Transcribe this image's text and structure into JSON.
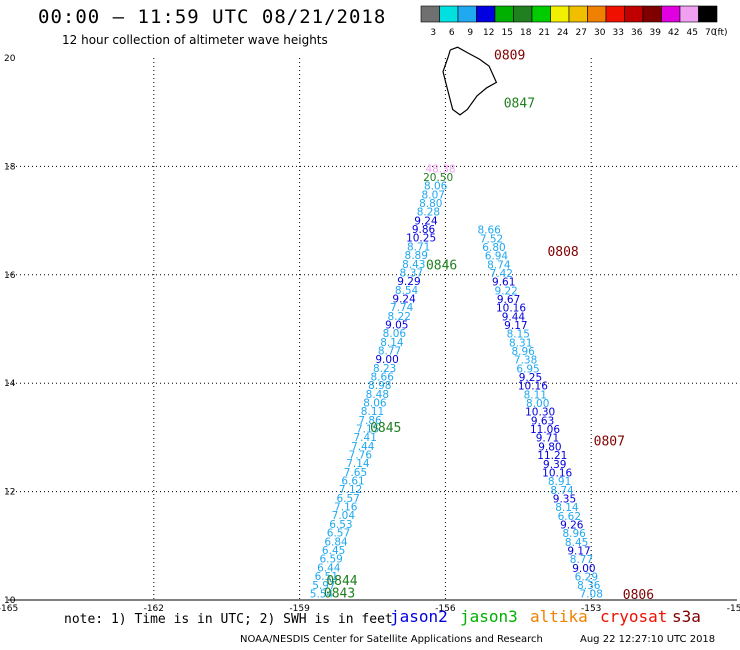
{
  "header": {
    "title": "00:00 – 11:59 UTC 08/21/2018",
    "subtitle": "12 hour collection of altimeter wave heights"
  },
  "colorbar": {
    "colors": [
      "#707070",
      "#00e0e0",
      "#20a8f0",
      "#0000e0",
      "#00b000",
      "#208020",
      "#00cc00",
      "#f0f000",
      "#f0c000",
      "#f08000",
      "#f01000",
      "#c00000",
      "#800000",
      "#e000e0",
      "#f0a0f0",
      "#000000"
    ],
    "labels": [
      "3",
      "6",
      "9",
      "12",
      "15",
      "18",
      "21",
      "24",
      "27",
      "30",
      "33",
      "36",
      "39",
      "42",
      "45",
      "70"
    ],
    "unit": "(ft)"
  },
  "chart_data": {
    "type": "scatter",
    "xlim": [
      -165,
      -150
    ],
    "ylim": [
      10,
      20
    ],
    "x_ticks": [
      "-165",
      "-162",
      "-159",
      "-156",
      "-153",
      "-150"
    ],
    "y_ticks": [
      "10",
      "12",
      "14",
      "16",
      "18",
      "20"
    ],
    "grid": "dotted",
    "tracks": [
      {
        "name": "jason3-ascending",
        "points": [
          {
            "lon": -158.55,
            "lat": 10.05,
            "v": "5.54",
            "c": "#20a8f0"
          },
          {
            "lon": -158.5,
            "lat": 10.2,
            "v": "5.97",
            "c": "#20a8f0"
          },
          {
            "lon": -158.45,
            "lat": 10.37,
            "v": "6.51",
            "c": "#20a8f0"
          },
          {
            "lon": -158.4,
            "lat": 10.53,
            "v": "6.44",
            "c": "#20a8f0"
          },
          {
            "lon": -158.35,
            "lat": 10.69,
            "v": "6.59",
            "c": "#20a8f0"
          },
          {
            "lon": -158.3,
            "lat": 10.85,
            "v": "6.45",
            "c": "#20a8f0"
          },
          {
            "lon": -158.25,
            "lat": 11.01,
            "v": "6.84",
            "c": "#20a8f0"
          },
          {
            "lon": -158.2,
            "lat": 11.17,
            "v": "6.57",
            "c": "#20a8f0"
          },
          {
            "lon": -158.15,
            "lat": 11.33,
            "v": "6.53",
            "c": "#20a8f0"
          },
          {
            "lon": -158.1,
            "lat": 11.49,
            "v": "7.04",
            "c": "#20a8f0"
          },
          {
            "lon": -158.05,
            "lat": 11.65,
            "v": "7.16",
            "c": "#20a8f0"
          },
          {
            "lon": -158.0,
            "lat": 11.81,
            "v": "6.57",
            "c": "#20a8f0"
          },
          {
            "lon": -157.95,
            "lat": 11.97,
            "v": "7.12",
            "c": "#20a8f0"
          },
          {
            "lon": -157.9,
            "lat": 12.13,
            "v": "6.61",
            "c": "#20a8f0"
          },
          {
            "lon": -157.85,
            "lat": 12.29,
            "v": "7.65",
            "c": "#20a8f0"
          },
          {
            "lon": -157.8,
            "lat": 12.45,
            "v": "7.14",
            "c": "#20a8f0"
          },
          {
            "lon": -157.75,
            "lat": 12.61,
            "v": "7.76",
            "c": "#20a8f0"
          },
          {
            "lon": -157.7,
            "lat": 12.77,
            "v": "7.44",
            "c": "#20a8f0"
          },
          {
            "lon": -157.65,
            "lat": 12.93,
            "v": "7.41",
            "c": "#20a8f0"
          },
          {
            "lon": -157.6,
            "lat": 13.09,
            "v": "7.15",
            "c": "#20a8f0"
          },
          {
            "lon": -157.55,
            "lat": 13.25,
            "v": "7.86",
            "c": "#20a8f0"
          },
          {
            "lon": -157.5,
            "lat": 13.41,
            "v": "8.11",
            "c": "#20a8f0"
          },
          {
            "lon": -157.45,
            "lat": 13.57,
            "v": "8.06",
            "c": "#20a8f0"
          },
          {
            "lon": -157.4,
            "lat": 13.73,
            "v": "8.48",
            "c": "#20a8f0"
          },
          {
            "lon": -157.35,
            "lat": 13.89,
            "v": "8.98",
            "c": "#20a8f0"
          },
          {
            "lon": -157.3,
            "lat": 14.05,
            "v": "8.66",
            "c": "#20a8f0"
          },
          {
            "lon": -157.25,
            "lat": 14.21,
            "v": "8.23",
            "c": "#20a8f0"
          },
          {
            "lon": -157.2,
            "lat": 14.37,
            "v": "9.00",
            "c": "#0000e0"
          },
          {
            "lon": -157.15,
            "lat": 14.53,
            "v": "8.77",
            "c": "#20a8f0"
          },
          {
            "lon": -157.1,
            "lat": 14.69,
            "v": "8.14",
            "c": "#20a8f0"
          },
          {
            "lon": -157.05,
            "lat": 14.85,
            "v": "8.06",
            "c": "#20a8f0"
          },
          {
            "lon": -157.0,
            "lat": 15.01,
            "v": "9.05",
            "c": "#0000e0"
          },
          {
            "lon": -156.95,
            "lat": 15.17,
            "v": "8.22",
            "c": "#20a8f0"
          },
          {
            "lon": -156.9,
            "lat": 15.33,
            "v": "7.74",
            "c": "#20a8f0"
          },
          {
            "lon": -156.85,
            "lat": 15.49,
            "v": "9.24",
            "c": "#0000e0"
          },
          {
            "lon": -156.8,
            "lat": 15.65,
            "v": "8.54",
            "c": "#20a8f0"
          },
          {
            "lon": -156.75,
            "lat": 15.81,
            "v": "9.29",
            "c": "#0000e0"
          },
          {
            "lon": -156.7,
            "lat": 15.97,
            "v": "8.37",
            "c": "#20a8f0"
          },
          {
            "lon": -156.65,
            "lat": 16.13,
            "v": "8.43",
            "c": "#20a8f0"
          },
          {
            "lon": -156.6,
            "lat": 16.29,
            "v": "8.89",
            "c": "#20a8f0"
          },
          {
            "lon": -156.55,
            "lat": 16.45,
            "v": "8.71",
            "c": "#20a8f0"
          },
          {
            "lon": -156.5,
            "lat": 16.61,
            "v": "10.25",
            "c": "#0000e0"
          },
          {
            "lon": -156.45,
            "lat": 16.77,
            "v": "9.86",
            "c": "#0000e0"
          },
          {
            "lon": -156.4,
            "lat": 16.93,
            "v": "9.24",
            "c": "#0000e0"
          },
          {
            "lon": -156.35,
            "lat": 17.09,
            "v": "8.28",
            "c": "#20a8f0"
          },
          {
            "lon": -156.3,
            "lat": 17.25,
            "v": "8.80",
            "c": "#20a8f0"
          },
          {
            "lon": -156.25,
            "lat": 17.41,
            "v": "8.07",
            "c": "#20a8f0"
          },
          {
            "lon": -156.2,
            "lat": 17.57,
            "v": "8.06",
            "c": "#20a8f0"
          },
          {
            "lon": -156.15,
            "lat": 17.73,
            "v": "20.50",
            "c": "#208020"
          },
          {
            "lon": -156.1,
            "lat": 17.89,
            "v": "48.38",
            "c": "#f0a0f0"
          }
        ]
      },
      {
        "name": "jason3-descending",
        "points": [
          {
            "lon": -153.0,
            "lat": 10.05,
            "v": "7.08",
            "c": "#20a8f0"
          },
          {
            "lon": -153.05,
            "lat": 10.2,
            "v": "8.36",
            "c": "#20a8f0"
          },
          {
            "lon": -153.1,
            "lat": 10.36,
            "v": "6.29",
            "c": "#20a8f0"
          },
          {
            "lon": -153.15,
            "lat": 10.52,
            "v": "9.00",
            "c": "#0000e0"
          },
          {
            "lon": -153.2,
            "lat": 10.68,
            "v": "8.77",
            "c": "#20a8f0"
          },
          {
            "lon": -153.25,
            "lat": 10.84,
            "v": "9.17",
            "c": "#0000e0"
          },
          {
            "lon": -153.3,
            "lat": 11.0,
            "v": "8.45",
            "c": "#20a8f0"
          },
          {
            "lon": -153.35,
            "lat": 11.16,
            "v": "8.96",
            "c": "#20a8f0"
          },
          {
            "lon": -153.4,
            "lat": 11.32,
            "v": "9.26",
            "c": "#0000e0"
          },
          {
            "lon": -153.45,
            "lat": 11.48,
            "v": "6.62",
            "c": "#20a8f0"
          },
          {
            "lon": -153.5,
            "lat": 11.64,
            "v": "8.14",
            "c": "#20a8f0"
          },
          {
            "lon": -153.55,
            "lat": 11.8,
            "v": "9.35",
            "c": "#0000e0"
          },
          {
            "lon": -153.6,
            "lat": 11.96,
            "v": "8.74",
            "c": "#20a8f0"
          },
          {
            "lon": -153.65,
            "lat": 12.12,
            "v": "8.91",
            "c": "#20a8f0"
          },
          {
            "lon": -153.7,
            "lat": 12.28,
            "v": "10.16",
            "c": "#0000e0"
          },
          {
            "lon": -153.75,
            "lat": 12.44,
            "v": "9.39",
            "c": "#0000e0"
          },
          {
            "lon": -153.8,
            "lat": 12.6,
            "v": "11.21",
            "c": "#0000e0"
          },
          {
            "lon": -153.85,
            "lat": 12.76,
            "v": "9.80",
            "c": "#0000e0"
          },
          {
            "lon": -153.9,
            "lat": 12.92,
            "v": "9.71",
            "c": "#0000e0"
          },
          {
            "lon": -153.95,
            "lat": 13.08,
            "v": "11.06",
            "c": "#0000e0"
          },
          {
            "lon": -154.0,
            "lat": 13.24,
            "v": "9.63",
            "c": "#0000e0"
          },
          {
            "lon": -154.05,
            "lat": 13.4,
            "v": "10.30",
            "c": "#0000e0"
          },
          {
            "lon": -154.1,
            "lat": 13.56,
            "v": "8.00",
            "c": "#20a8f0"
          },
          {
            "lon": -154.15,
            "lat": 13.72,
            "v": "8.11",
            "c": "#20a8f0"
          },
          {
            "lon": -154.2,
            "lat": 13.88,
            "v": "10.16",
            "c": "#0000e0"
          },
          {
            "lon": -154.25,
            "lat": 14.04,
            "v": "9.25",
            "c": "#0000e0"
          },
          {
            "lon": -154.3,
            "lat": 14.2,
            "v": "6.95",
            "c": "#20a8f0"
          },
          {
            "lon": -154.35,
            "lat": 14.36,
            "v": "7.38",
            "c": "#20a8f0"
          },
          {
            "lon": -154.4,
            "lat": 14.52,
            "v": "8.96",
            "c": "#20a8f0"
          },
          {
            "lon": -154.45,
            "lat": 14.68,
            "v": "8.31",
            "c": "#20a8f0"
          },
          {
            "lon": -154.5,
            "lat": 14.84,
            "v": "8.15",
            "c": "#20a8f0"
          },
          {
            "lon": -154.55,
            "lat": 15.0,
            "v": "9.17",
            "c": "#0000e0"
          },
          {
            "lon": -154.6,
            "lat": 15.16,
            "v": "9.44",
            "c": "#0000e0"
          },
          {
            "lon": -154.65,
            "lat": 15.32,
            "v": "10.16",
            "c": "#0000e0"
          },
          {
            "lon": -154.7,
            "lat": 15.48,
            "v": "9.67",
            "c": "#0000e0"
          },
          {
            "lon": -154.75,
            "lat": 15.64,
            "v": "9.22",
            "c": "#20a8f0"
          },
          {
            "lon": -154.8,
            "lat": 15.8,
            "v": "9.61",
            "c": "#0000e0"
          },
          {
            "lon": -154.85,
            "lat": 15.96,
            "v": "7.42",
            "c": "#20a8f0"
          },
          {
            "lon": -154.9,
            "lat": 16.12,
            "v": "8.74",
            "c": "#20a8f0"
          },
          {
            "lon": -154.95,
            "lat": 16.28,
            "v": "6.94",
            "c": "#20a8f0"
          },
          {
            "lon": -155.0,
            "lat": 16.44,
            "v": "6.80",
            "c": "#20a8f0"
          },
          {
            "lon": -155.05,
            "lat": 16.6,
            "v": "7.52",
            "c": "#20a8f0"
          },
          {
            "lon": -155.1,
            "lat": 16.76,
            "v": "8.66",
            "c": "#20a8f0"
          }
        ]
      }
    ],
    "annotations": [
      {
        "text": "0809",
        "lon": -155.0,
        "lat": 19.97,
        "c": "#800000"
      },
      {
        "text": "0847",
        "lon": -154.8,
        "lat": 19.09,
        "c": "#208020"
      },
      {
        "text": "0808",
        "lon": -153.9,
        "lat": 16.35,
        "c": "#800000"
      },
      {
        "text": "0846",
        "lon": -156.4,
        "lat": 16.1,
        "c": "#208020"
      },
      {
        "text": "0845",
        "lon": -157.55,
        "lat": 13.1,
        "c": "#208020"
      },
      {
        "text": "0807",
        "lon": -152.95,
        "lat": 12.85,
        "c": "#800000"
      },
      {
        "text": "0844",
        "lon": -158.45,
        "lat": 10.28,
        "c": "#208020"
      },
      {
        "text": "0843",
        "lon": -158.5,
        "lat": 10.05,
        "c": "#208020"
      },
      {
        "text": "0806",
        "lon": -152.35,
        "lat": 10.02,
        "c": "#800000"
      }
    ]
  },
  "footer": {
    "note": "note: 1) Time is in UTC; 2) SWH is in feet",
    "satellites": [
      {
        "name": "jason2",
        "color": "#0000e0"
      },
      {
        "name": "jason3",
        "color": "#00b000"
      },
      {
        "name": "altika",
        "color": "#f08000"
      },
      {
        "name": "cryosat",
        "color": "#f01000"
      },
      {
        "name": "s3a",
        "color": "#800000"
      }
    ],
    "credit": "NOAA/NESDIS Center for Satellite Applications and Research",
    "timestamp": "Aug 22 12:27:10 UTC 2018"
  }
}
